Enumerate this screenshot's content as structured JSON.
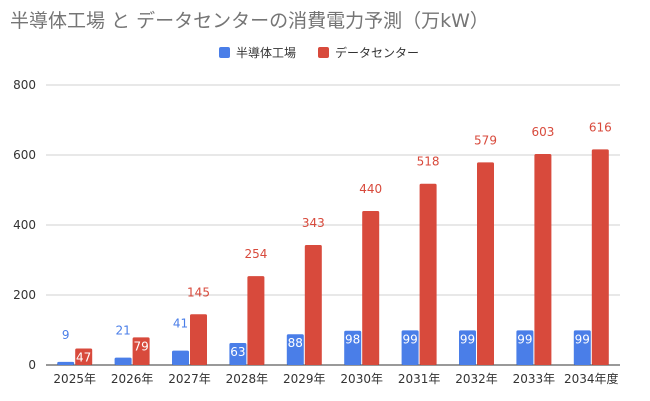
{
  "chart_data": {
    "type": "bar",
    "title": "半導体工場 と データセンターの消費電力予測（万kW）",
    "categories": [
      "2025年",
      "2026年",
      "2027年",
      "2028年",
      "2029年",
      "2030年",
      "2031年",
      "2032年",
      "2033年",
      "2034年度"
    ],
    "series": [
      {
        "name": "半導体工場",
        "color": "#4a7ee8",
        "values": [
          9,
          21,
          41,
          63,
          88,
          98,
          99,
          99,
          99,
          99
        ]
      },
      {
        "name": "データセンター",
        "color": "#d84a3c",
        "values": [
          47,
          79,
          145,
          254,
          343,
          440,
          518,
          579,
          603,
          616
        ]
      }
    ],
    "yticks": [
      0,
      200,
      400,
      600,
      800
    ],
    "ylim": [
      0,
      800
    ],
    "xlabel": "",
    "ylabel": "",
    "grid": true,
    "legend": "top-center"
  }
}
